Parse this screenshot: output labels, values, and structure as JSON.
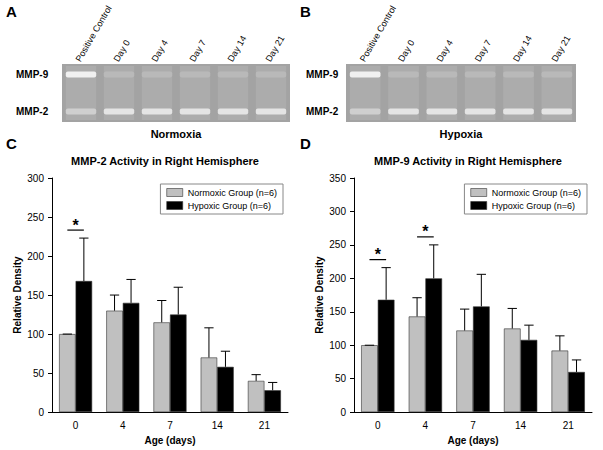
{
  "gels": [
    {
      "panel": "A",
      "lanes": [
        "Positive Control",
        "Day 0",
        "Day 4",
        "Day 7",
        "Day 14",
        "Day 21"
      ],
      "bands": [
        "MMP-9",
        "MMP-2"
      ],
      "caption": "Normoxia"
    },
    {
      "panel": "B",
      "lanes": [
        "Positive Control",
        "Day 0",
        "Day 4",
        "Day 7",
        "Day 14",
        "Day 21"
      ],
      "bands": [
        "MMP-9",
        "MMP-2"
      ],
      "caption": "Hypoxia"
    }
  ],
  "chart_data": [
    {
      "panel": "C",
      "type": "bar",
      "title": "MMP-2 Activity in Right Hemisphere",
      "xlabel": "Age (days)",
      "ylabel": "Relative Density",
      "categories": [
        "0",
        "4",
        "7",
        "14",
        "21"
      ],
      "series": [
        {
          "name": "Normoxic Group (n=6)",
          "color": "#c0c0c0",
          "values": [
            100,
            130,
            115,
            70,
            40
          ],
          "errors": [
            0,
            20,
            28,
            38,
            8
          ]
        },
        {
          "name": "Hypoxic Group (n=6)",
          "color": "#000000",
          "values": [
            168,
            140,
            125,
            58,
            28
          ],
          "errors": [
            55,
            30,
            35,
            20,
            10
          ]
        }
      ],
      "ylim": [
        0,
        300
      ],
      "yticks": [
        0,
        50,
        100,
        150,
        200,
        250,
        300
      ],
      "grid": false,
      "legend": "upper right",
      "annotations": [
        {
          "text": "*",
          "category": "0"
        }
      ]
    },
    {
      "panel": "D",
      "type": "bar",
      "title": "MMP-9 Activity in Right Hemisphere",
      "xlabel": "Age (days)",
      "ylabel": "Relative Density",
      "categories": [
        "0",
        "4",
        "7",
        "14",
        "21"
      ],
      "series": [
        {
          "name": "Normoxic Group (n=6)",
          "color": "#c0c0c0",
          "values": [
            100,
            143,
            122,
            125,
            92
          ],
          "errors": [
            0,
            28,
            32,
            30,
            22
          ]
        },
        {
          "name": "Hypoxic Group (n=6)",
          "color": "#000000",
          "values": [
            168,
            200,
            158,
            108,
            60
          ],
          "errors": [
            48,
            50,
            48,
            22,
            18
          ]
        }
      ],
      "ylim": [
        0,
        350
      ],
      "yticks": [
        0,
        50,
        100,
        150,
        200,
        250,
        300,
        350
      ],
      "grid": false,
      "legend": "upper right",
      "annotations": [
        {
          "text": "*",
          "category": "0"
        },
        {
          "text": "*",
          "category": "4"
        }
      ]
    }
  ]
}
